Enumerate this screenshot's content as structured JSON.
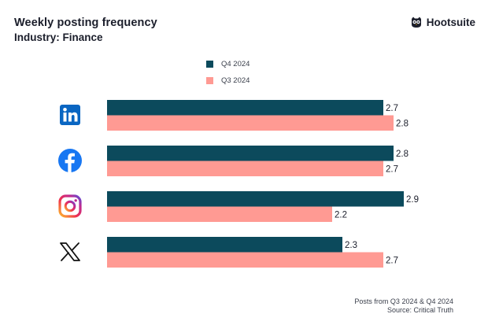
{
  "header": {
    "title": "Weekly posting frequency",
    "subtitle": "Industry: Finance"
  },
  "brand": {
    "name": "Hootsuite",
    "icon": "owl-logo-icon"
  },
  "footer": {
    "line1": "Posts from Q3 2024 & Q4 2024",
    "line2": "Source: Critical Truth"
  },
  "colors": {
    "q4": "#0c4a5c",
    "q3": "#ff9a93"
  },
  "chart_data": {
    "type": "bar",
    "orientation": "horizontal",
    "title": "Weekly posting frequency",
    "subtitle": "Industry: Finance",
    "categories": [
      "LinkedIn",
      "Facebook",
      "Instagram",
      "X"
    ],
    "category_icons": [
      "linkedin-icon",
      "facebook-icon",
      "instagram-icon",
      "x-icon"
    ],
    "series": [
      {
        "name": "Q4 2024",
        "values": [
          2.7,
          2.8,
          2.9,
          2.3
        ],
        "labels": [
          "2.7",
          "2.8",
          "2.9",
          "2.3"
        ],
        "color": "#0c4a5c"
      },
      {
        "name": "Q3 2024",
        "values": [
          2.8,
          2.7,
          2.2,
          2.7
        ],
        "labels": [
          "2.8",
          "2.7",
          "2.2",
          "2.7"
        ],
        "color": "#ff9a93"
      }
    ],
    "xlim": [
      0,
      3.2
    ],
    "grid": false,
    "legend": "top-center",
    "xlabel": "",
    "ylabel": ""
  }
}
